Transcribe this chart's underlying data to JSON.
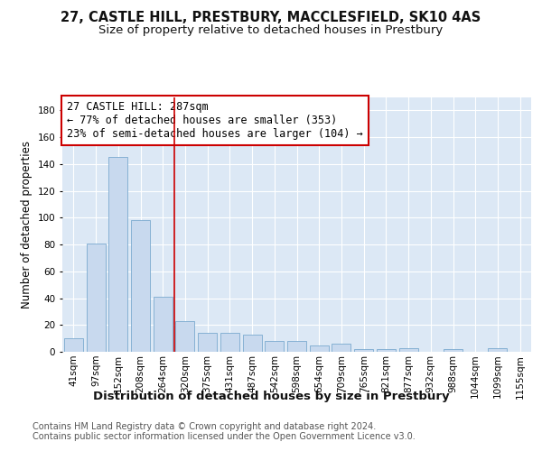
{
  "title": "27, CASTLE HILL, PRESTBURY, MACCLESFIELD, SK10 4AS",
  "subtitle": "Size of property relative to detached houses in Prestbury",
  "xlabel": "Distribution of detached houses by size in Prestbury",
  "ylabel": "Number of detached properties",
  "categories": [
    "41sqm",
    "97sqm",
    "152sqm",
    "208sqm",
    "264sqm",
    "320sqm",
    "375sqm",
    "431sqm",
    "487sqm",
    "542sqm",
    "598sqm",
    "654sqm",
    "709sqm",
    "765sqm",
    "821sqm",
    "877sqm",
    "932sqm",
    "988sqm",
    "1044sqm",
    "1099sqm",
    "1155sqm"
  ],
  "values": [
    10,
    81,
    145,
    98,
    41,
    23,
    14,
    14,
    13,
    8,
    8,
    5,
    6,
    2,
    2,
    3,
    0,
    2,
    0,
    3,
    0
  ],
  "bar_color": "#c8d9ee",
  "bar_edge_color": "#7aaacf",
  "vline_color": "#cc0000",
  "vline_position": 4.5,
  "annotation_line1": "27 CASTLE HILL: 287sqm",
  "annotation_line2": "← 77% of detached houses are smaller (353)",
  "annotation_line3": "23% of semi-detached houses are larger (104) →",
  "annotation_box_color": "#ffffff",
  "annotation_box_edge_color": "#cc0000",
  "ylim": [
    0,
    190
  ],
  "yticks": [
    0,
    20,
    40,
    60,
    80,
    100,
    120,
    140,
    160,
    180
  ],
  "plot_bg_color": "#dce8f5",
  "fig_bg_color": "#ffffff",
  "grid_color": "#ffffff",
  "footer_text": "Contains HM Land Registry data © Crown copyright and database right 2024.\nContains public sector information licensed under the Open Government Licence v3.0.",
  "title_fontsize": 10.5,
  "subtitle_fontsize": 9.5,
  "xlabel_fontsize": 9.5,
  "ylabel_fontsize": 8.5,
  "tick_fontsize": 7.5,
  "annotation_fontsize": 8.5,
  "footer_fontsize": 7.0
}
